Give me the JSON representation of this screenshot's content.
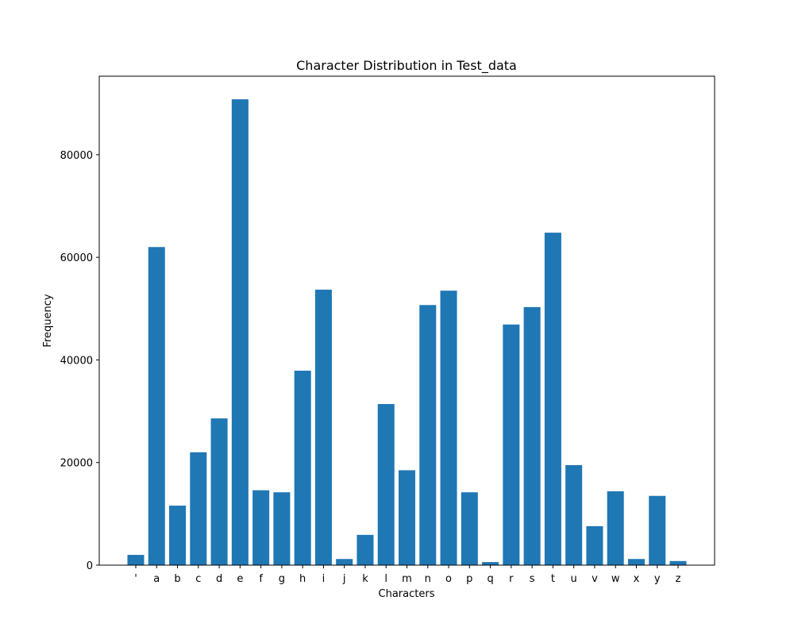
{
  "chart_data": {
    "type": "bar",
    "title": "Character Distribution in Test_data",
    "xlabel": "Characters",
    "ylabel": "Frequency",
    "categories": [
      "'",
      "a",
      "b",
      "c",
      "d",
      "e",
      "f",
      "g",
      "h",
      "i",
      "j",
      "k",
      "l",
      "m",
      "n",
      "o",
      "p",
      "q",
      "r",
      "s",
      "t",
      "u",
      "v",
      "w",
      "x",
      "y",
      "z"
    ],
    "values": [
      2000,
      62000,
      11600,
      22000,
      28600,
      90800,
      14600,
      14200,
      37900,
      53700,
      1200,
      5900,
      31400,
      18500,
      50700,
      53500,
      14200,
      600,
      46900,
      50300,
      64800,
      19500,
      7600,
      14400,
      1200,
      13500,
      800
    ],
    "yticks": [
      0,
      20000,
      40000,
      60000,
      80000
    ],
    "ylim": [
      0,
      95300
    ],
    "bar_color": "#1f77b4",
    "grid": false,
    "legend": false
  }
}
